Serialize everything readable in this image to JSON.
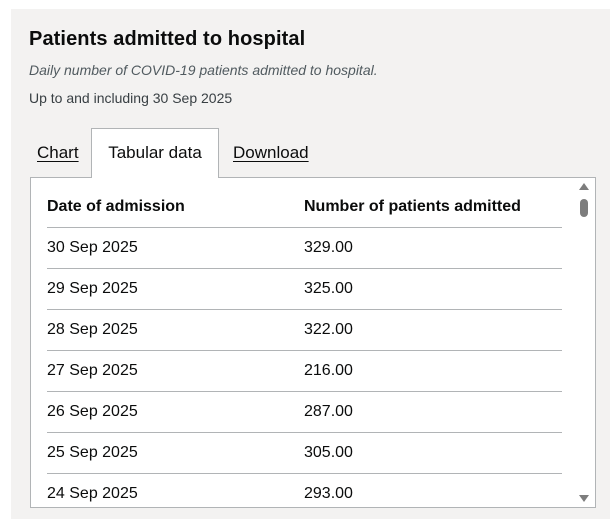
{
  "card": {
    "title": "Patients admitted to hospital",
    "subtitle": "Daily number of COVID-19 patients admitted to hospital.",
    "updated": "Up to and including 30 Sep 2025"
  },
  "tabs": [
    {
      "label": "Chart",
      "active": false
    },
    {
      "label": "Tabular data",
      "active": true
    },
    {
      "label": "Download",
      "active": false
    }
  ],
  "table": {
    "headers": [
      "Date of admission",
      "Number of patients admitted"
    ],
    "rows": [
      [
        "30 Sep 2025",
        "329.00"
      ],
      [
        "29 Sep 2025",
        "325.00"
      ],
      [
        "28 Sep 2025",
        "322.00"
      ],
      [
        "27 Sep 2025",
        "216.00"
      ],
      [
        "26 Sep 2025",
        "287.00"
      ],
      [
        "25 Sep 2025",
        "305.00"
      ],
      [
        "24 Sep 2025",
        "293.00"
      ]
    ]
  },
  "colors": {
    "card_background": "#f3f2f1",
    "text": "#0b0c0c",
    "border": "#b1b4b6"
  }
}
